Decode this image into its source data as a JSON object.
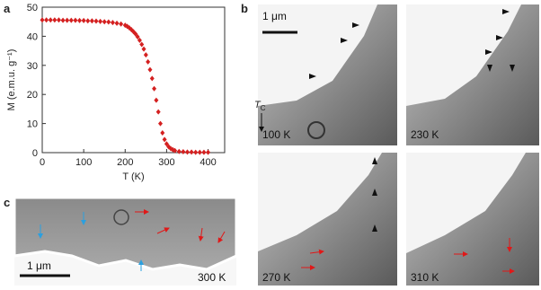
{
  "panels": {
    "a": "a",
    "b": "b",
    "c": "c"
  },
  "chart_data": {
    "type": "scatter",
    "x_label": "T (K)",
    "y_label": "M (e.m.u. g⁻¹)",
    "annotation": {
      "text": "T",
      "subscript": "C"
    },
    "xlim": [
      0,
      440
    ],
    "xticks": [
      0,
      100,
      200,
      300,
      400
    ],
    "ylim": [
      0,
      50
    ],
    "yticks": [
      0,
      10,
      20,
      30,
      40,
      50
    ],
    "series": [
      {
        "color": "#d42020",
        "x": [
          0,
          10,
          20,
          30,
          40,
          50,
          60,
          70,
          80,
          90,
          100,
          110,
          120,
          130,
          140,
          150,
          160,
          170,
          180,
          190,
          200,
          205,
          210,
          215,
          220,
          225,
          230,
          235,
          240,
          245,
          250,
          255,
          260,
          265,
          270,
          275,
          280,
          285,
          290,
          295,
          300,
          305,
          310,
          315,
          320,
          330,
          340,
          350,
          360,
          370,
          380,
          390,
          400
        ],
        "values": [
          45.6,
          45.6,
          45.6,
          45.6,
          45.6,
          45.5,
          45.5,
          45.5,
          45.5,
          45.4,
          45.4,
          45.3,
          45.3,
          45.2,
          45.1,
          45.0,
          44.9,
          44.7,
          44.5,
          44.2,
          43.8,
          43.4,
          42.9,
          42.3,
          41.6,
          40.8,
          39.8,
          38.6,
          37.2,
          35.6,
          33.6,
          31.2,
          28.5,
          25.5,
          22.0,
          18.0,
          14.0,
          10.0,
          6.8,
          4.5,
          3.0,
          2.0,
          1.4,
          1.0,
          0.7,
          0.4,
          0.3,
          0.2,
          0.2,
          0.1,
          0.1,
          0.1,
          0.1
        ]
      }
    ]
  },
  "images": {
    "b": {
      "labels": [
        "100 K",
        "230 K",
        "270 K",
        "310 K"
      ],
      "scale_bar": "1 μm"
    },
    "c": {
      "label": "300 K",
      "scale_bar": "1 μm"
    }
  }
}
